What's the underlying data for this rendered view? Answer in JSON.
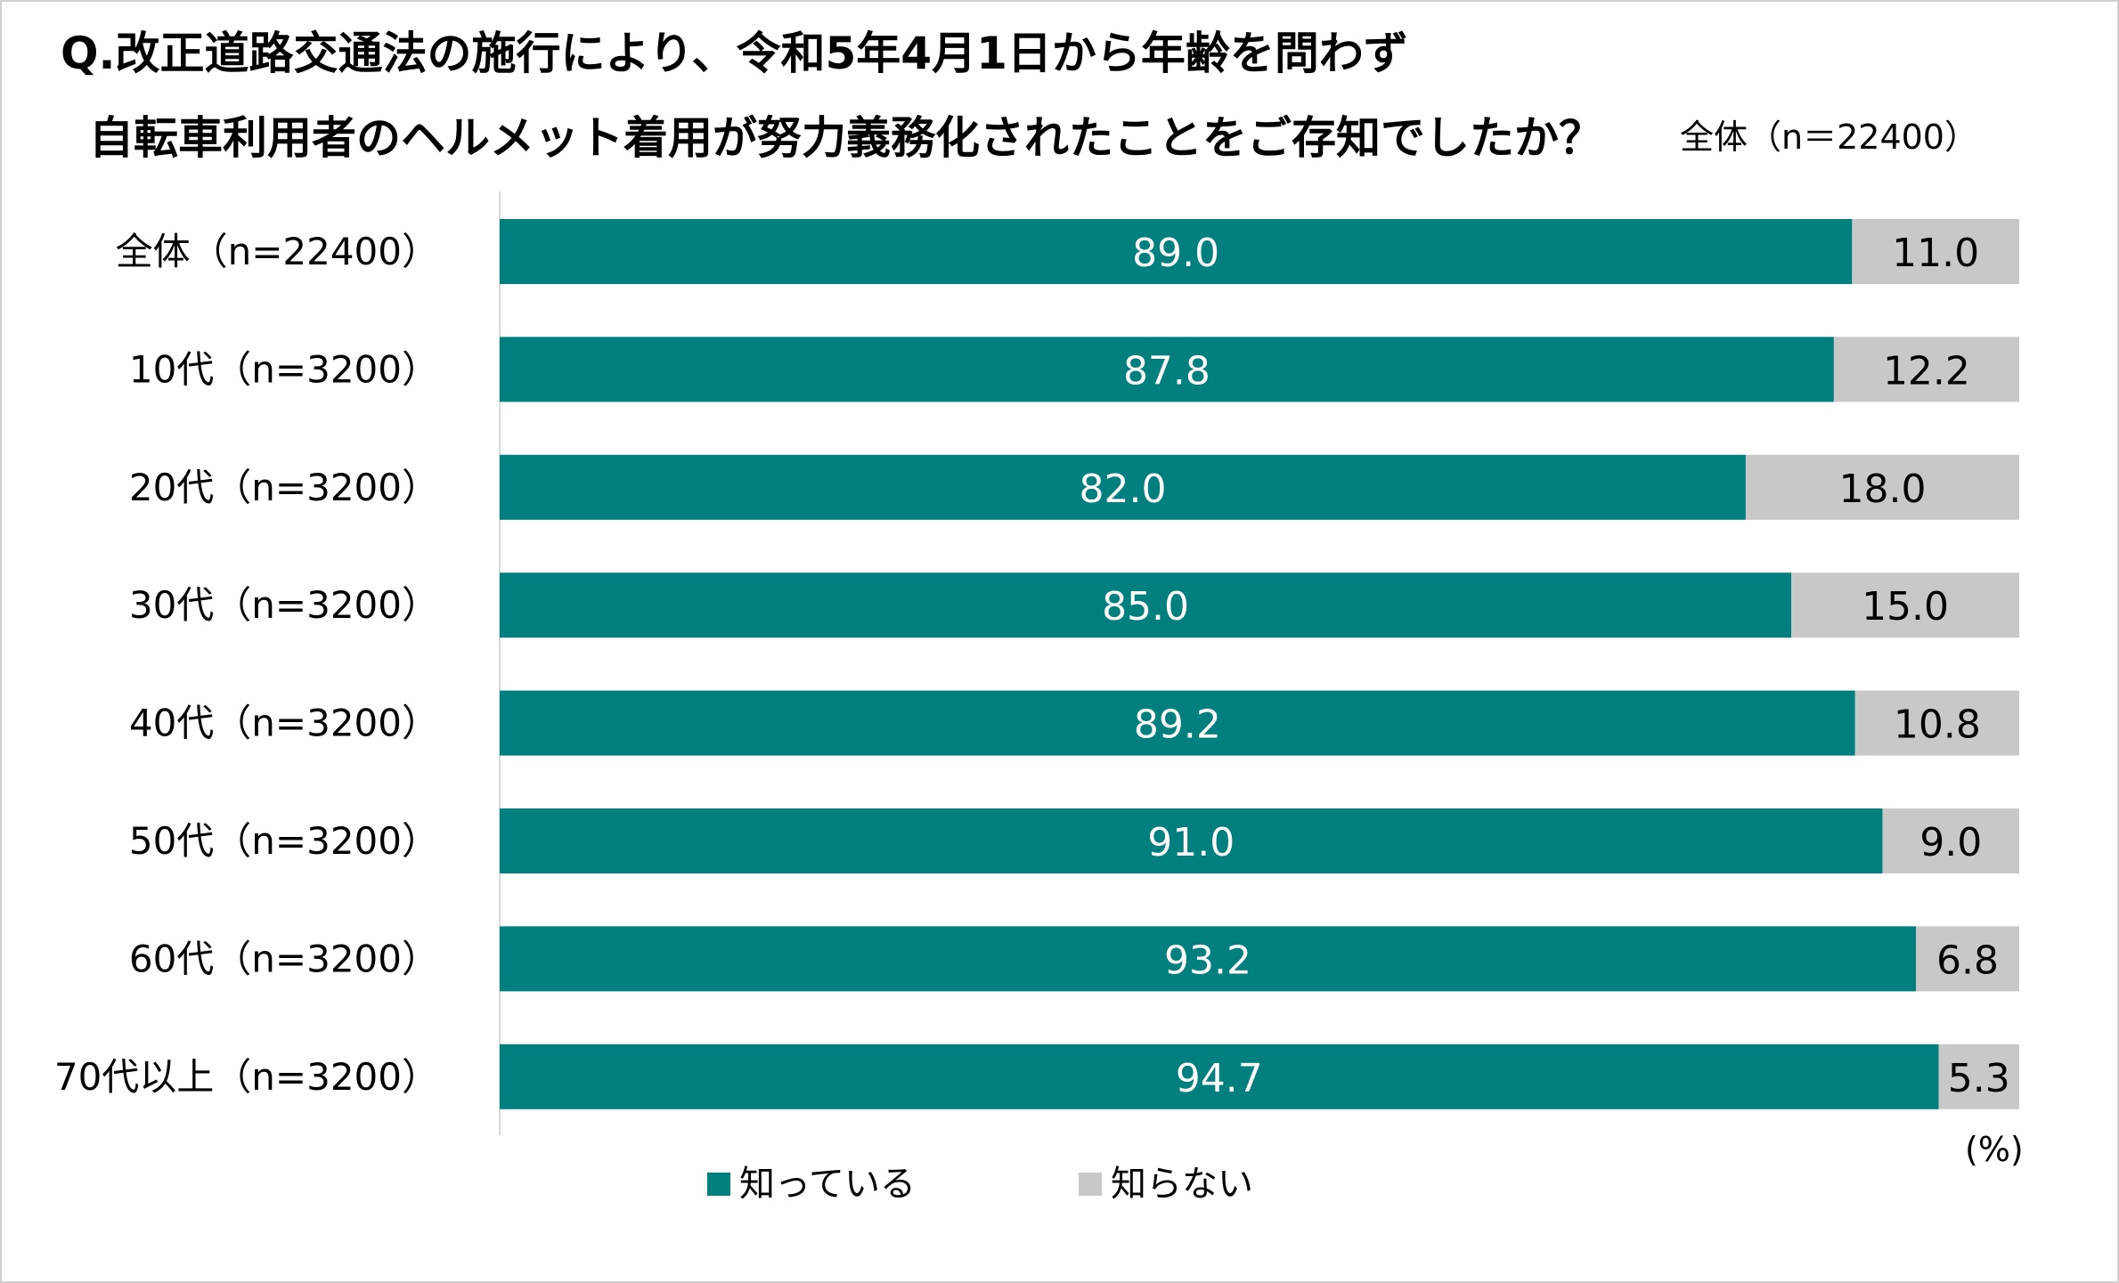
{
  "chart_data": {
    "type": "bar",
    "orientation": "horizontal",
    "stacked": true,
    "title_line1": "Q.改正道路交通法の施行により、令和5年4月1日から年齢を問わず",
    "title_line2": "自転車利用者のヘルメット着用が努力義務化されたことをご存知でしたか？",
    "subtitle": "全体（n＝22400）",
    "unit_label": "(%)",
    "categories": [
      "全体（n=22400）",
      "10代（n=3200）",
      "20代（n=3200）",
      "30代（n=3200）",
      "40代（n=3200）",
      "50代（n=3200）",
      "60代（n=3200）",
      "70代以上（n=3200）"
    ],
    "series": [
      {
        "name": "知っている",
        "color": "#007f7f",
        "label_color": "#ffffff",
        "values": [
          89.0,
          87.8,
          82.0,
          85.0,
          89.2,
          91.0,
          93.2,
          94.7
        ],
        "labels": [
          "89.0",
          "87.8",
          "82.0",
          "85.0",
          "89.2",
          "91.0",
          "93.2",
          "94.7"
        ]
      },
      {
        "name": "知らない",
        "color": "#c8c8c8",
        "label_color": "#000000",
        "values": [
          11.0,
          12.2,
          18.0,
          15.0,
          10.8,
          9.0,
          6.8,
          5.3
        ],
        "labels": [
          "11.0",
          "12.2",
          "18.0",
          "15.0",
          "10.8",
          "9.0",
          "6.8",
          "5.3"
        ]
      }
    ],
    "xlim": [
      0,
      100
    ],
    "legend_position": "bottom"
  }
}
